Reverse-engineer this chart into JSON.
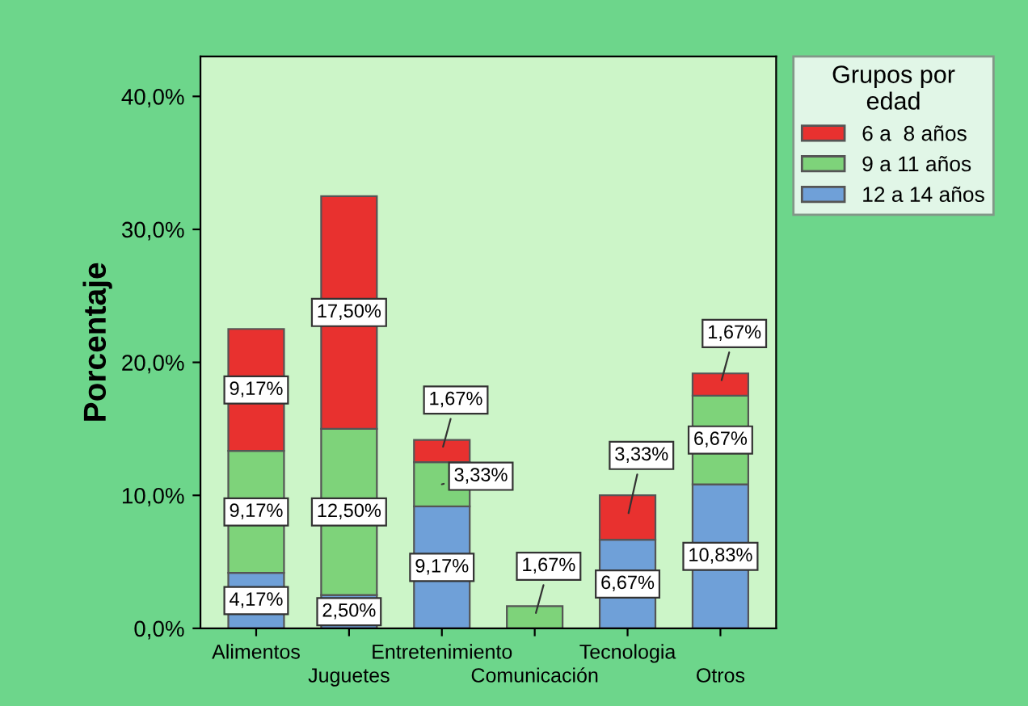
{
  "chart_data": {
    "type": "bar",
    "stacked": true,
    "ylabel": "Porcentaje",
    "legend_title": "Grupos por\nedad",
    "legend": "right",
    "categories": [
      "Alimentos",
      "Juguetes",
      "Entretenimiento",
      "Comunicación",
      "Tecnologia",
      "Otros"
    ],
    "series": [
      {
        "name": "12 a 14 años",
        "color": "#6fa0d8",
        "values": [
          4.17,
          2.5,
          9.17,
          null,
          6.67,
          10.83
        ],
        "value_labels": [
          "4,17%",
          "2,50%",
          "9,17%",
          null,
          "6,67%",
          "10,83%"
        ]
      },
      {
        "name": "9 a 11 años",
        "color": "#7ed37a",
        "values": [
          9.17,
          12.5,
          3.33,
          1.67,
          null,
          6.67
        ],
        "value_labels": [
          "9,17%",
          "12,50%",
          "3,33%",
          "1,67%",
          null,
          "6,67%"
        ]
      },
      {
        "name": "6 a  8 años",
        "color": "#e8312f",
        "values": [
          9.17,
          17.5,
          1.67,
          null,
          3.33,
          1.67
        ],
        "value_labels": [
          "9,17%",
          "17,50%",
          "1,67%",
          null,
          "3,33%",
          "1,67%"
        ]
      }
    ],
    "ylim": [
      0,
      43
    ],
    "yticks": [
      {
        "value": 0,
        "label": "0,0%"
      },
      {
        "value": 10,
        "label": "10,0%"
      },
      {
        "value": 20,
        "label": "20,0%"
      },
      {
        "value": 30,
        "label": "30,0%"
      },
      {
        "value": 40,
        "label": "40,0%"
      }
    ],
    "grid": false
  }
}
